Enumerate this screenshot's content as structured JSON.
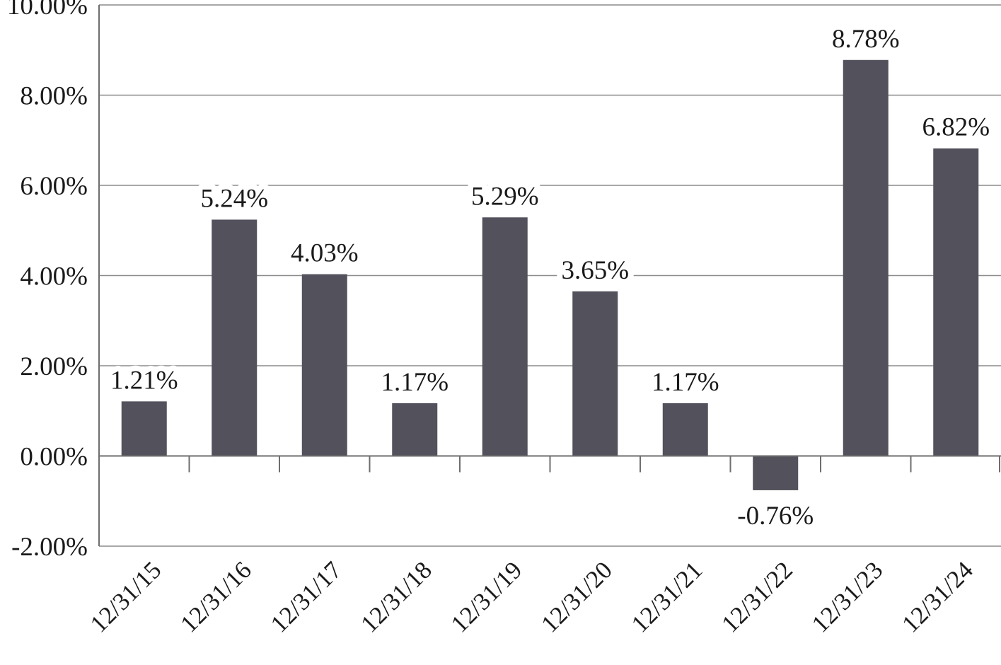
{
  "chart_data": {
    "type": "bar",
    "title": "",
    "xlabel": "",
    "ylabel": "",
    "categories": [
      "12/31/15",
      "12/31/16",
      "12/31/17",
      "12/31/18",
      "12/31/19",
      "12/31/20",
      "12/31/21",
      "12/31/22",
      "12/31/23",
      "12/31/24"
    ],
    "values": [
      1.21,
      5.24,
      4.03,
      1.17,
      5.29,
      3.65,
      1.17,
      -0.76,
      8.78,
      6.82
    ],
    "value_labels": [
      "1.21%",
      "5.24%",
      "4.03%",
      "1.17%",
      "5.29%",
      "3.65%",
      "1.17%",
      "-0.76%",
      "8.78%",
      "6.82%"
    ],
    "ylim": [
      -2,
      10
    ],
    "yticks": [
      -2,
      0,
      2,
      4,
      6,
      8,
      10
    ],
    "ytick_labels": [
      "-2.00%",
      "0.00%",
      "2.00%",
      "4.00%",
      "6.00%",
      "8.00%",
      "10.00%"
    ],
    "grid": true,
    "legend": "none",
    "colors": {
      "bar": "#52515c",
      "grid": "#8c8c8c",
      "axis": "#6e6e6e"
    }
  }
}
